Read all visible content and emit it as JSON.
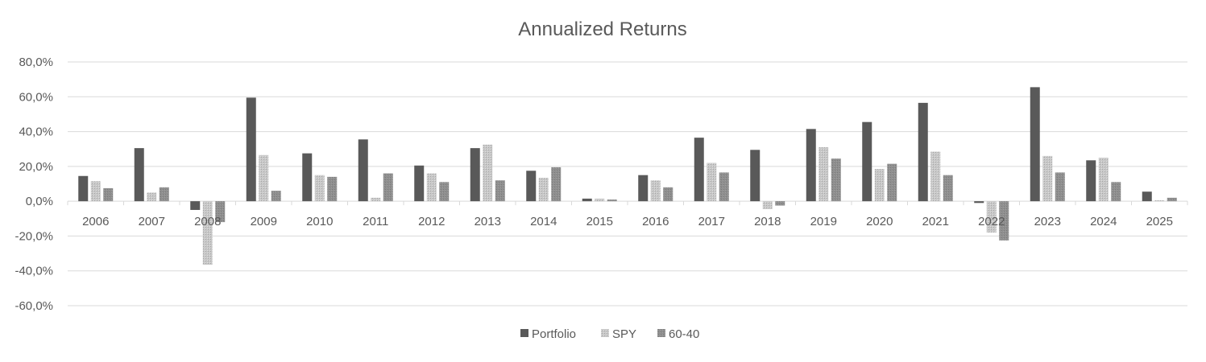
{
  "chart_data": {
    "type": "bar",
    "title": "Annualized Returns",
    "xlabel": "",
    "ylabel": "",
    "ylim": [
      -60,
      80
    ],
    "yticks": [
      80,
      60,
      40,
      20,
      0,
      -20,
      -40,
      -60
    ],
    "ytick_labels": [
      "80,0%",
      "60,0%",
      "40,0%",
      "20,0%",
      "0,0%",
      "-20,0%",
      "-40,0%",
      "-60,0%"
    ],
    "grid": true,
    "legend_position": "bottom",
    "categories": [
      "2006",
      "2007",
      "2008",
      "2009",
      "2010",
      "2011",
      "2012",
      "2013",
      "2014",
      "2015",
      "2016",
      "2017",
      "2018",
      "2019",
      "2020",
      "2021",
      "2022",
      "2023",
      "2024",
      "2025"
    ],
    "series": [
      {
        "name": "Portfolio",
        "color": "#595959",
        "pattern": "solid",
        "values": [
          14.5,
          30.5,
          -5.0,
          59.5,
          27.5,
          35.5,
          20.5,
          30.5,
          17.5,
          1.5,
          15.0,
          36.5,
          29.5,
          41.5,
          45.5,
          56.5,
          -1.0,
          65.5,
          23.5,
          5.5
        ]
      },
      {
        "name": "SPY",
        "color": "#bfbfbf",
        "pattern": "dots",
        "values": [
          11.5,
          5.0,
          -36.5,
          26.5,
          15.0,
          2.0,
          16.0,
          32.5,
          13.5,
          1.5,
          12.0,
          22.0,
          -4.5,
          31.0,
          18.5,
          28.5,
          -18.0,
          26.0,
          25.0,
          0.5
        ]
      },
      {
        "name": "60-40",
        "color": "#8c8c8c",
        "pattern": "dense",
        "values": [
          7.5,
          8.0,
          -12.0,
          6.0,
          14.0,
          16.0,
          11.0,
          12.0,
          19.5,
          1.0,
          8.0,
          16.5,
          -2.5,
          24.5,
          21.5,
          15.0,
          -22.5,
          16.5,
          11.0,
          2.0
        ]
      }
    ]
  }
}
